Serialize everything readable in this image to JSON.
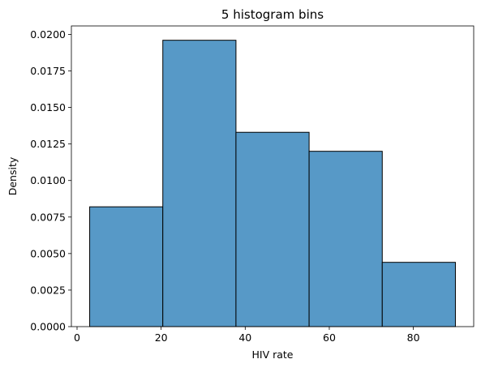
{
  "chart_data": {
    "type": "histogram",
    "title": "5 histogram bins",
    "xlabel": "HIV rate",
    "ylabel": "Density",
    "bins": [
      {
        "start": 3.0,
        "end": 20.4,
        "density": 0.0082
      },
      {
        "start": 20.4,
        "end": 37.8,
        "density": 0.0196
      },
      {
        "start": 37.8,
        "end": 55.2,
        "density": 0.0133
      },
      {
        "start": 55.2,
        "end": 72.6,
        "density": 0.012
      },
      {
        "start": 72.6,
        "end": 90.0,
        "density": 0.0044
      }
    ],
    "xlim": [
      -1.35,
      94.35
    ],
    "ylim": [
      0,
      0.02058
    ],
    "x_ticks": [
      0,
      20,
      40,
      60,
      80
    ],
    "x_tick_labels": [
      "0",
      "20",
      "40",
      "60",
      "80"
    ],
    "y_ticks": [
      0,
      0.0025,
      0.005,
      0.0075,
      0.01,
      0.0125,
      0.015,
      0.0175,
      0.02
    ],
    "y_tick_labels": [
      "0.0000",
      "0.0025",
      "0.0050",
      "0.0075",
      "0.0100",
      "0.0125",
      "0.0150",
      "0.0175",
      "0.0200"
    ],
    "grid": false,
    "bar_color": "#5799c7",
    "bar_edge_color": "#000000"
  }
}
